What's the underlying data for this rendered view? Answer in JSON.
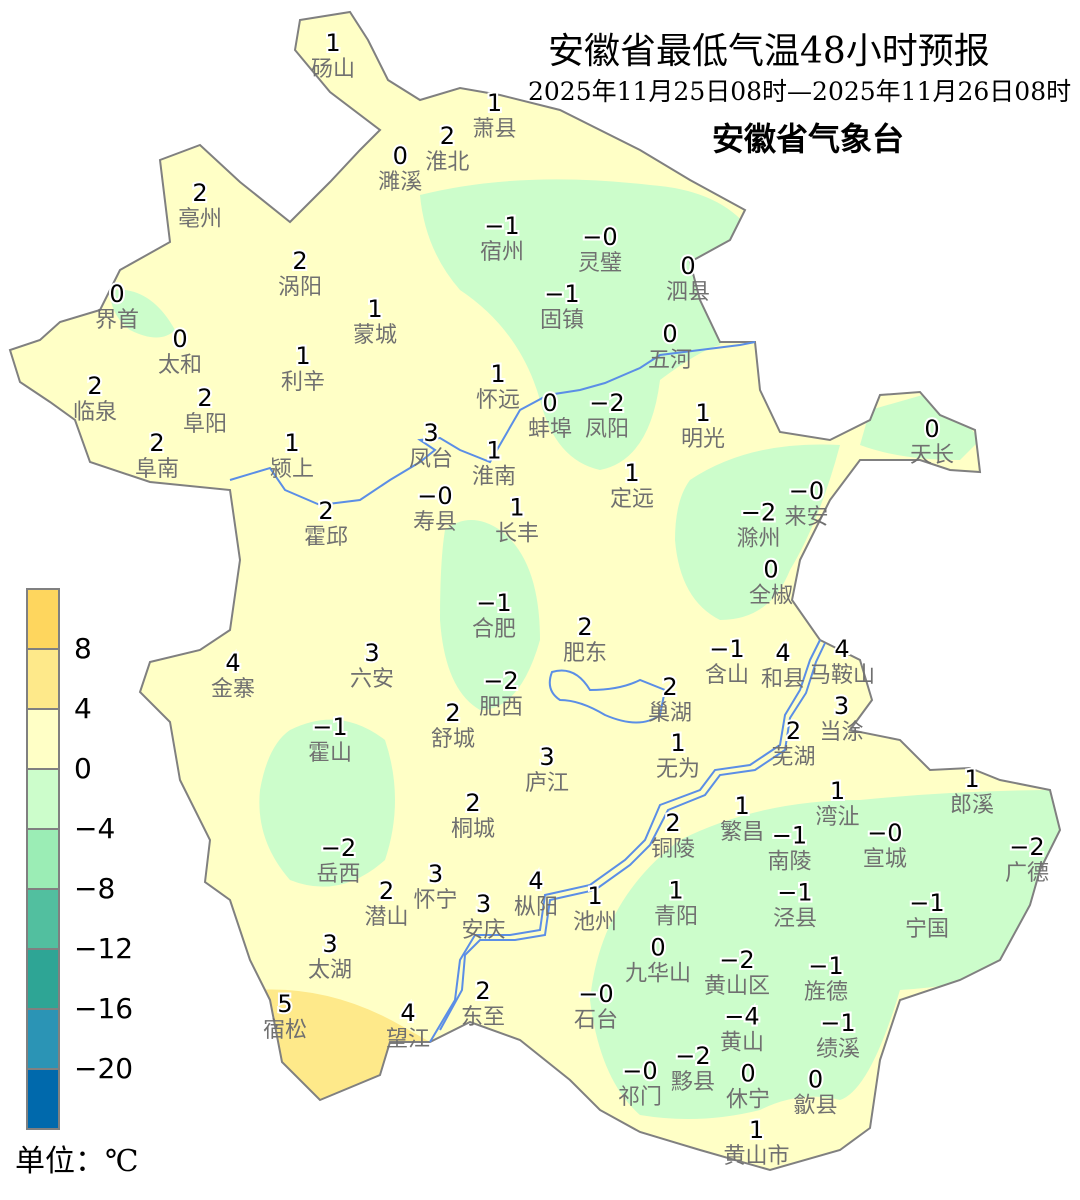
{
  "title": "安徽省最低气温48小时预报",
  "subtitle": "2025年11月25日08时—2025年11月26日08时",
  "issuer": "安徽省气象台",
  "legend": {
    "unit_label": "单位：℃",
    "labels": [
      "8",
      "4",
      "0",
      "−4",
      "−8",
      "−12",
      "−16",
      "−20"
    ],
    "colors": [
      "#fed65e",
      "#fee98a",
      "#ffffc6",
      "#ccfdcb",
      "#9bedb5",
      "#52bf9f",
      "#2ea595",
      "#2b94b5",
      "#0069ac"
    ]
  },
  "colors": {
    "outline": "#808080",
    "river": "#5b8ee6",
    "warm": "#ffffc6",
    "cool": "#ccfdcb",
    "hot": "#fee98a",
    "station_name": "#707070"
  },
  "stations": [
    {
      "v": "1",
      "n": "砀山"
    },
    {
      "v": "1",
      "n": "萧县"
    },
    {
      "v": "2",
      "n": "淮北"
    },
    {
      "v": "0",
      "n": "濉溪"
    },
    {
      "v": "2",
      "n": "亳州"
    },
    {
      "v": "−1",
      "n": "宿州"
    },
    {
      "v": "−0",
      "n": "灵璧"
    },
    {
      "v": "0",
      "n": "泗县"
    },
    {
      "v": "2",
      "n": "涡阳"
    },
    {
      "v": "0",
      "n": "界首"
    },
    {
      "v": "−1",
      "n": "固镇"
    },
    {
      "v": "1",
      "n": "蒙城"
    },
    {
      "v": "0",
      "n": "太和"
    },
    {
      "v": "0",
      "n": "五河"
    },
    {
      "v": "1",
      "n": "利辛"
    },
    {
      "v": "2",
      "n": "临泉"
    },
    {
      "v": "2",
      "n": "阜阳"
    },
    {
      "v": "1",
      "n": "怀远"
    },
    {
      "v": "0",
      "n": "蚌埠"
    },
    {
      "v": "−2",
      "n": "凤阳"
    },
    {
      "v": "1",
      "n": "明光"
    },
    {
      "v": "0",
      "n": "天长"
    },
    {
      "v": "3",
      "n": "凤台"
    },
    {
      "v": "2",
      "n": "阜南"
    },
    {
      "v": "1",
      "n": "颍上"
    },
    {
      "v": "1",
      "n": "淮南"
    },
    {
      "v": "1",
      "n": "定远"
    },
    {
      "v": "−0",
      "n": "寿县"
    },
    {
      "v": "1",
      "n": "长丰"
    },
    {
      "v": "−0",
      "n": "来安"
    },
    {
      "v": "−2",
      "n": "滁州"
    },
    {
      "v": "2",
      "n": "霍邱"
    },
    {
      "v": "0",
      "n": "全椒"
    },
    {
      "v": "−1",
      "n": "合肥"
    },
    {
      "v": "2",
      "n": "肥东"
    },
    {
      "v": "−1",
      "n": "含山"
    },
    {
      "v": "4",
      "n": "和县"
    },
    {
      "v": "4",
      "n": "马鞍山"
    },
    {
      "v": "3",
      "n": "当涂"
    },
    {
      "v": "4",
      "n": "金寨"
    },
    {
      "v": "3",
      "n": "六安"
    },
    {
      "v": "−2",
      "n": "肥西"
    },
    {
      "v": "2",
      "n": "巢湖"
    },
    {
      "v": "2",
      "n": "舒城"
    },
    {
      "v": "−1",
      "n": "霍山"
    },
    {
      "v": "2",
      "n": "芜湖"
    },
    {
      "v": "1",
      "n": "无为"
    },
    {
      "v": "3",
      "n": "庐江"
    },
    {
      "v": "1",
      "n": "湾沚"
    },
    {
      "v": "1",
      "n": "郎溪"
    },
    {
      "v": "2",
      "n": "桐城"
    },
    {
      "v": "1",
      "n": "繁昌"
    },
    {
      "v": "−1",
      "n": "南陵"
    },
    {
      "v": "−0",
      "n": "宣城"
    },
    {
      "v": "2",
      "n": "铜陵"
    },
    {
      "v": "−2",
      "n": "广德"
    },
    {
      "v": "−2",
      "n": "岳西"
    },
    {
      "v": "3",
      "n": "怀宁"
    },
    {
      "v": "2",
      "n": "潜山"
    },
    {
      "v": "3",
      "n": "安庆"
    },
    {
      "v": "4",
      "n": "枞阳"
    },
    {
      "v": "1",
      "n": "池州"
    },
    {
      "v": "1",
      "n": "青阳"
    },
    {
      "v": "−1",
      "n": "泾县"
    },
    {
      "v": "−1",
      "n": "宁国"
    },
    {
      "v": "0",
      "n": "九华山"
    },
    {
      "v": "3",
      "n": "太湖"
    },
    {
      "v": "−0",
      "n": "石台"
    },
    {
      "v": "−2",
      "n": "黄山区"
    },
    {
      "v": "−1",
      "n": "旌德"
    },
    {
      "v": "2",
      "n": "东至"
    },
    {
      "v": "5",
      "n": "宿松"
    },
    {
      "v": "4",
      "n": "望江"
    },
    {
      "v": "−4",
      "n": "黄山"
    },
    {
      "v": "−1",
      "n": "绩溪"
    },
    {
      "v": "−0",
      "n": "祁门"
    },
    {
      "v": "−2",
      "n": "黟县"
    },
    {
      "v": "0",
      "n": "歙县"
    },
    {
      "v": "0",
      "n": "休宁"
    },
    {
      "v": "1",
      "n": "黄山市"
    }
  ]
}
